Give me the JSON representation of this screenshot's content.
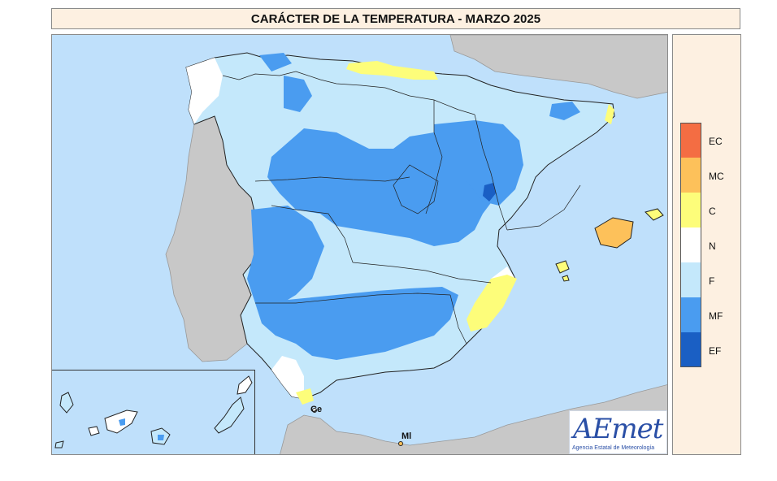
{
  "title": "CARÁCTER DE LA TEMPERATURA - MARZO 2025",
  "legend": [
    {
      "code": "EC",
      "color": "#f46d43"
    },
    {
      "code": "MC",
      "color": "#fdc15a"
    },
    {
      "code": "C",
      "color": "#fdfd7a"
    },
    {
      "code": "N",
      "color": "#ffffff"
    },
    {
      "code": "F",
      "color": "#c4e8fb"
    },
    {
      "code": "MF",
      "color": "#4a9cf0"
    },
    {
      "code": "EF",
      "color": "#1a5fc4"
    }
  ],
  "places": {
    "ceuta": "Ce",
    "melilla": "Ml"
  },
  "logo": {
    "name": "AEmet",
    "subtitle": "Agencia Estatal de Meteorología"
  },
  "colors": {
    "sea": "#bfe0fb",
    "foreign_land": "#c8c8c8",
    "border": "#222222"
  }
}
